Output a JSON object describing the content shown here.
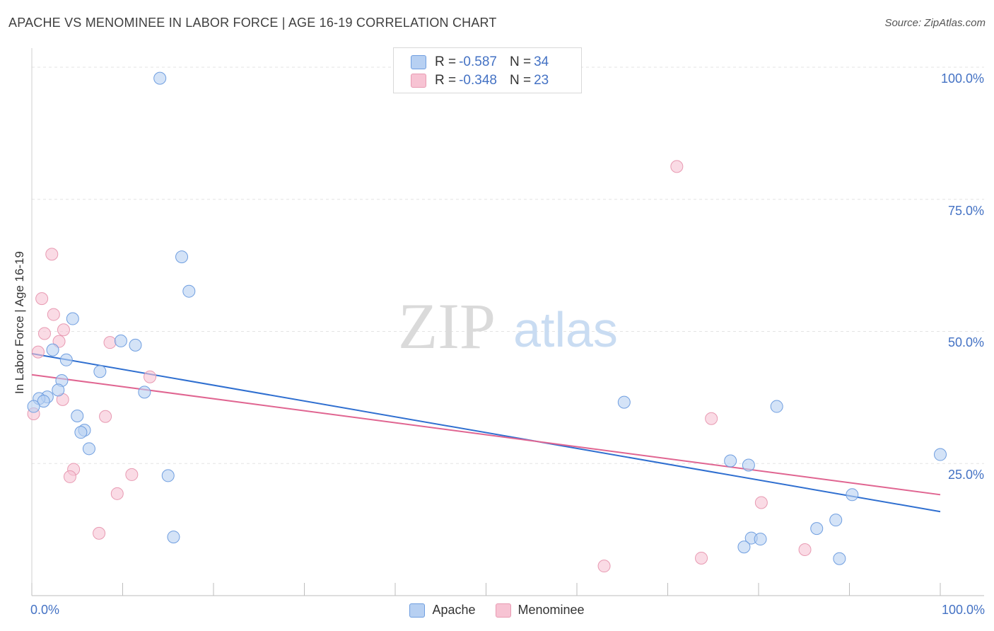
{
  "header": {
    "title": "APACHE VS MENOMINEE IN LABOR FORCE | AGE 16-19 CORRELATION CHART",
    "source": "Source: ZipAtlas.com"
  },
  "watermark": {
    "zip": "ZIP",
    "atlas": "atlas"
  },
  "legend": {
    "r_label": "R = ",
    "n_label": "N = ",
    "rows": [
      {
        "series": "Apache",
        "r": "-0.587",
        "n": "34"
      },
      {
        "series": "Menominee",
        "r": "-0.348",
        "n": "23"
      }
    ]
  },
  "colors": {
    "apache_fill": "#b7d0f2",
    "apache_stroke": "#6f9ee0",
    "apache_line": "#2f6fd0",
    "menominee_fill": "#f7c3d3",
    "menominee_stroke": "#e89ab2",
    "menominee_line": "#e06591",
    "axis_text": "#4472c4"
  },
  "chart_data": {
    "type": "scatter",
    "title": "APACHE VS MENOMINEE IN LABOR FORCE | AGE 16-19 CORRELATION CHART",
    "xlabel": "",
    "ylabel": "In Labor Force | Age 16-19",
    "xlim": [
      0,
      100
    ],
    "ylim": [
      0,
      102
    ],
    "x_tick_labels": [
      "0.0%",
      "100.0%"
    ],
    "y_ticks": [
      {
        "value": 100,
        "label": "100.0%"
      },
      {
        "value": 75,
        "label": "75.0%"
      },
      {
        "value": 50,
        "label": "50.0%"
      },
      {
        "value": 25,
        "label": "25.0%"
      }
    ],
    "series": [
      {
        "name": "Apache",
        "r": -0.587,
        "n": 34,
        "trend": {
          "x0": 0,
          "y0": 45.8,
          "x1": 100,
          "y1": 15.9
        },
        "points": [
          {
            "x": 14.1,
            "y": 97.9
          },
          {
            "x": 16.5,
            "y": 64.1
          },
          {
            "x": 17.3,
            "y": 57.6
          },
          {
            "x": 4.5,
            "y": 52.4
          },
          {
            "x": 9.8,
            "y": 48.2
          },
          {
            "x": 11.4,
            "y": 47.4
          },
          {
            "x": 2.3,
            "y": 46.5
          },
          {
            "x": 3.8,
            "y": 44.6
          },
          {
            "x": 7.5,
            "y": 42.4
          },
          {
            "x": 3.3,
            "y": 40.7
          },
          {
            "x": 2.9,
            "y": 38.9
          },
          {
            "x": 12.4,
            "y": 38.5
          },
          {
            "x": 1.7,
            "y": 37.6
          },
          {
            "x": 0.8,
            "y": 37.3
          },
          {
            "x": 1.3,
            "y": 36.8
          },
          {
            "x": 0.2,
            "y": 35.8
          },
          {
            "x": 5.0,
            "y": 34.0
          },
          {
            "x": 5.8,
            "y": 31.3
          },
          {
            "x": 5.4,
            "y": 30.9
          },
          {
            "x": 6.3,
            "y": 27.8
          },
          {
            "x": 15.0,
            "y": 22.7
          },
          {
            "x": 15.6,
            "y": 11.1
          },
          {
            "x": 65.2,
            "y": 36.6
          },
          {
            "x": 82.0,
            "y": 35.8
          },
          {
            "x": 76.9,
            "y": 25.5
          },
          {
            "x": 78.9,
            "y": 24.7
          },
          {
            "x": 100.0,
            "y": 26.7
          },
          {
            "x": 90.3,
            "y": 19.1
          },
          {
            "x": 88.5,
            "y": 14.3
          },
          {
            "x": 86.4,
            "y": 12.7
          },
          {
            "x": 79.2,
            "y": 10.9
          },
          {
            "x": 80.2,
            "y": 10.7
          },
          {
            "x": 78.4,
            "y": 9.2
          },
          {
            "x": 88.9,
            "y": 7.0
          }
        ]
      },
      {
        "name": "Menominee",
        "r": -0.348,
        "n": 23,
        "trend": {
          "x0": 0,
          "y0": 41.8,
          "x1": 100,
          "y1": 19.1
        },
        "points": [
          {
            "x": 71.0,
            "y": 81.2
          },
          {
            "x": 2.2,
            "y": 64.6
          },
          {
            "x": 1.1,
            "y": 56.2
          },
          {
            "x": 2.4,
            "y": 53.2
          },
          {
            "x": 3.5,
            "y": 50.3
          },
          {
            "x": 1.4,
            "y": 49.6
          },
          {
            "x": 3.0,
            "y": 48.1
          },
          {
            "x": 8.6,
            "y": 47.9
          },
          {
            "x": 0.7,
            "y": 46.1
          },
          {
            "x": 13.0,
            "y": 41.4
          },
          {
            "x": 3.4,
            "y": 37.1
          },
          {
            "x": 8.1,
            "y": 33.9
          },
          {
            "x": 0.2,
            "y": 34.4
          },
          {
            "x": 74.8,
            "y": 33.5
          },
          {
            "x": 4.6,
            "y": 23.9
          },
          {
            "x": 4.2,
            "y": 22.5
          },
          {
            "x": 11.0,
            "y": 22.9
          },
          {
            "x": 9.4,
            "y": 19.3
          },
          {
            "x": 80.3,
            "y": 17.6
          },
          {
            "x": 7.4,
            "y": 11.8
          },
          {
            "x": 85.1,
            "y": 8.7
          },
          {
            "x": 73.7,
            "y": 7.1
          },
          {
            "x": 63.0,
            "y": 5.6
          }
        ]
      }
    ]
  }
}
